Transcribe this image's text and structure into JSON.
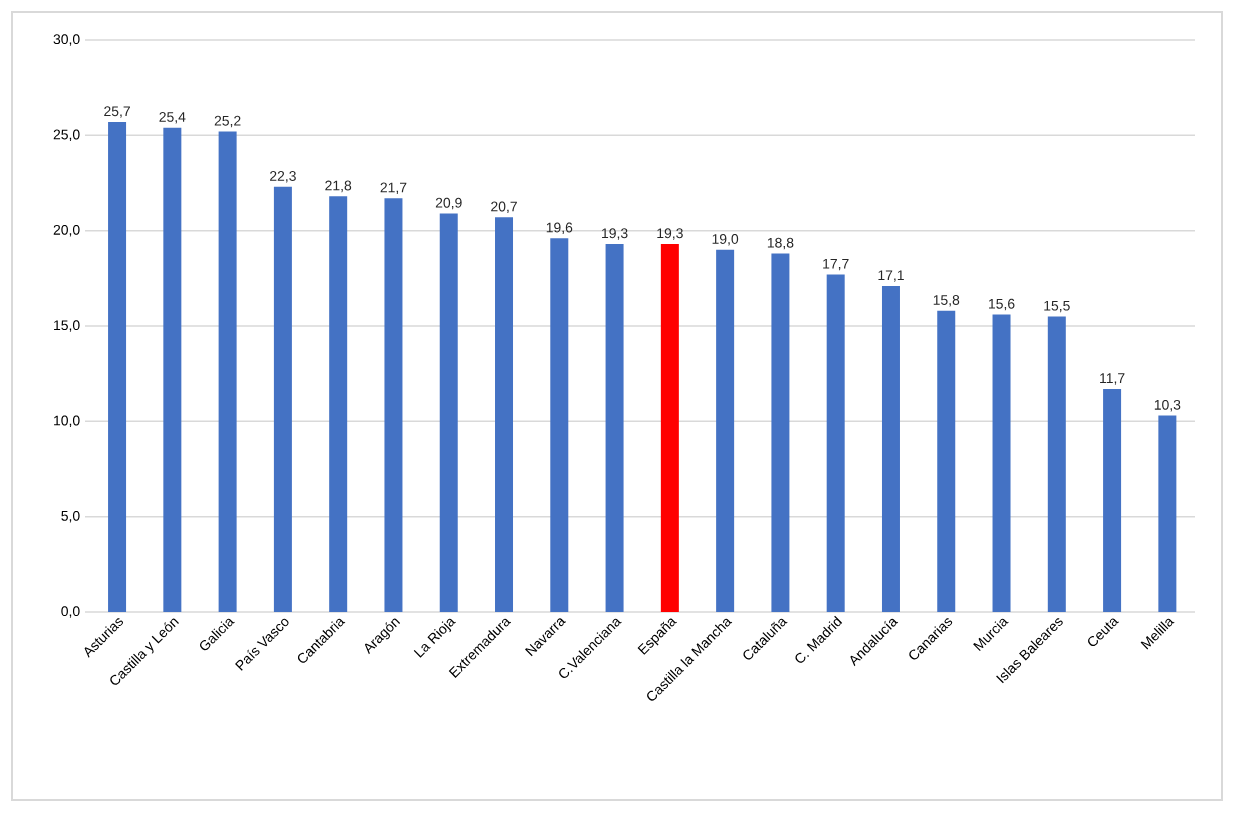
{
  "chart_data": {
    "type": "bar",
    "categories": [
      "Asturias",
      "Castilla y León",
      "Galicia",
      "País Vasco",
      "Cantabria",
      "Aragón",
      "La Rioja",
      "Extremadura",
      "Navarra",
      "C.Valenciana",
      "España",
      "Castilla la Mancha",
      "Cataluña",
      "C. Madrid",
      "Andalucía",
      "Canarias",
      "Murcia",
      "Islas Baleares",
      "Ceuta",
      "Melilla"
    ],
    "values": [
      25.7,
      25.4,
      25.2,
      22.3,
      21.8,
      21.7,
      20.9,
      20.7,
      19.6,
      19.3,
      19.3,
      19.0,
      18.8,
      17.7,
      17.1,
      15.8,
      15.6,
      15.5,
      11.7,
      10.3
    ],
    "value_labels": [
      "25,7",
      "25,4",
      "25,2",
      "22,3",
      "21,8",
      "21,7",
      "20,9",
      "20,7",
      "19,6",
      "19,3",
      "19,3",
      "19,0",
      "18,8",
      "17,7",
      "17,1",
      "15,8",
      "15,6",
      "15,5",
      "11,7",
      "10,3"
    ],
    "colors": [
      "#4472c4",
      "#4472c4",
      "#4472c4",
      "#4472c4",
      "#4472c4",
      "#4472c4",
      "#4472c4",
      "#4472c4",
      "#4472c4",
      "#4472c4",
      "#ff0000",
      "#4472c4",
      "#4472c4",
      "#4472c4",
      "#4472c4",
      "#4472c4",
      "#4472c4",
      "#4472c4",
      "#4472c4",
      "#4472c4"
    ],
    "ylim": [
      0,
      30
    ],
    "yticks": [
      {
        "value": 0,
        "label": "0,0"
      },
      {
        "value": 5,
        "label": "5,0"
      },
      {
        "value": 10,
        "label": "10,0"
      },
      {
        "value": 15,
        "label": "15,0"
      },
      {
        "value": 20,
        "label": "20,0"
      },
      {
        "value": 25,
        "label": "25,0"
      },
      {
        "value": 30,
        "label": "30,0"
      }
    ],
    "grid": "y"
  }
}
